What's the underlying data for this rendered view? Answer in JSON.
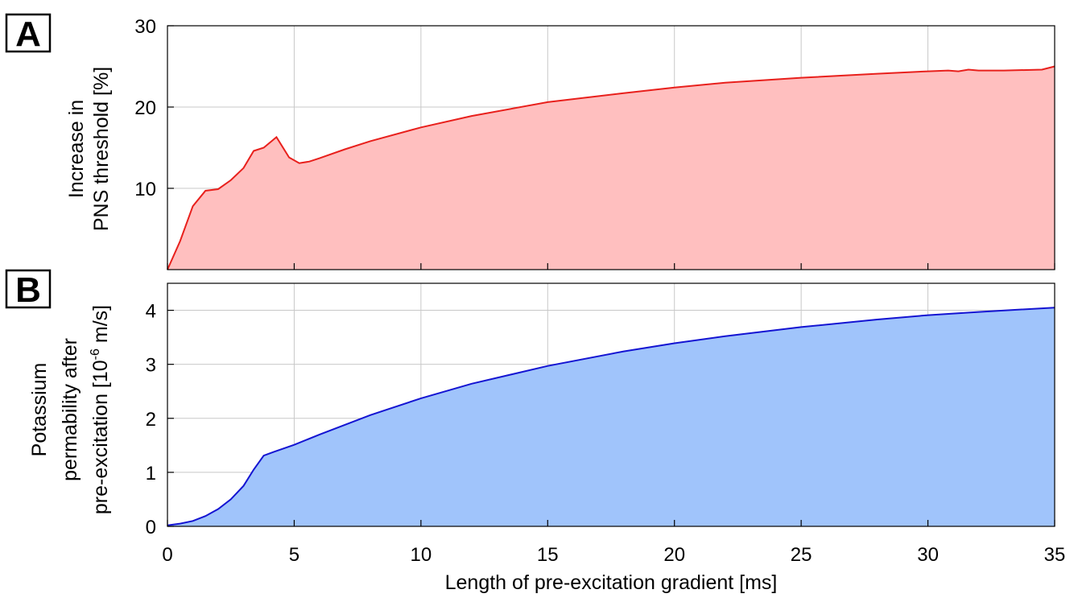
{
  "chart_data": [
    {
      "panel": "A",
      "type": "area",
      "ylabel_lines": [
        "Increase in",
        "PNS threshold [%]"
      ],
      "xlim": [
        0,
        35
      ],
      "ylim": [
        0,
        30
      ],
      "yticks": [
        10,
        20,
        30
      ],
      "xticks": [
        0,
        5,
        10,
        15,
        20,
        25,
        30,
        35
      ],
      "grid": true,
      "color": "#e8201c",
      "fill": "#ffbfbf",
      "x": [
        0,
        0.5,
        1,
        1.5,
        2,
        2.5,
        3,
        3.4,
        3.8,
        4.3,
        4.8,
        5.2,
        5.6,
        6,
        7,
        8,
        10,
        12,
        15,
        18,
        20,
        22,
        25,
        28,
        30,
        30.8,
        31.2,
        31.6,
        32,
        33,
        34.5,
        35
      ],
      "y": [
        0,
        3.5,
        7.8,
        9.7,
        9.9,
        11,
        12.5,
        14.6,
        15,
        16.3,
        13.8,
        13.1,
        13.3,
        13.7,
        14.8,
        15.8,
        17.5,
        18.9,
        20.6,
        21.7,
        22.4,
        23,
        23.6,
        24.1,
        24.4,
        24.5,
        24.4,
        24.6,
        24.5,
        24.5,
        24.6,
        25
      ]
    },
    {
      "panel": "B",
      "type": "area",
      "ylabel_lines": [
        "Potassium",
        "permability after",
        "pre-excitation [10^-6 m/s]"
      ],
      "xlabel": "Length of pre-excitation gradient [ms]",
      "xlim": [
        0,
        35
      ],
      "ylim": [
        0,
        4.5
      ],
      "yticks": [
        0,
        1,
        2,
        3,
        4
      ],
      "xticks": [
        0,
        5,
        10,
        15,
        20,
        25,
        30,
        35
      ],
      "grid": true,
      "color": "#1414d2",
      "fill": "#a0c4fb",
      "x": [
        0,
        0.5,
        1,
        1.5,
        2,
        2.5,
        3,
        3.4,
        3.8,
        4.2,
        5,
        6,
        8,
        10,
        12,
        15,
        18,
        20,
        22,
        25,
        28,
        30,
        32,
        35
      ],
      "y": [
        0.02,
        0.05,
        0.1,
        0.19,
        0.32,
        0.5,
        0.75,
        1.05,
        1.31,
        1.38,
        1.51,
        1.7,
        2.06,
        2.37,
        2.64,
        2.97,
        3.24,
        3.39,
        3.52,
        3.69,
        3.83,
        3.91,
        3.97,
        4.05
      ]
    }
  ],
  "xtick_labels": [
    "0",
    "5",
    "10",
    "15",
    "20",
    "25",
    "30",
    "35"
  ],
  "xlabel": "Length of pre-excitation gradient [ms]",
  "panel_a": {
    "letter": "A",
    "ylabel_line1": "Increase in",
    "ylabel_line2": "PNS threshold [%]",
    "ytick_labels": [
      "10",
      "20",
      "30"
    ]
  },
  "panel_b": {
    "letter": "B",
    "ylabel_line1": "Potassium",
    "ylabel_line2": "permability after",
    "ylabel_line3_pre": "pre-excitation [10",
    "ylabel_line3_sup": "-6",
    "ylabel_line3_post": " m/s]",
    "ytick_labels": [
      "0",
      "1",
      "2",
      "3",
      "4"
    ]
  }
}
